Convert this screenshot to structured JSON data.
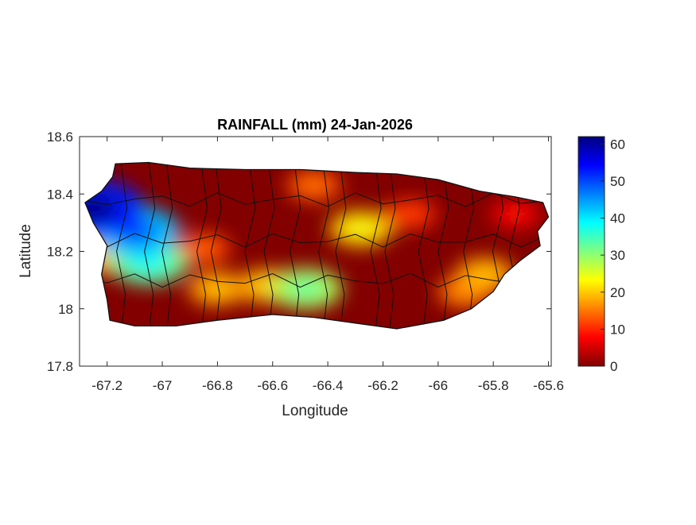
{
  "chart_data": {
    "type": "heatmap",
    "title": "RAINFALL (mm) 24-Jan-2026",
    "xlabel": "Longitude",
    "ylabel": "Latitude",
    "xlim": [
      -67.3,
      -65.59
    ],
    "ylim": [
      17.8,
      18.6
    ],
    "xticks": [
      -67.2,
      -67,
      -66.8,
      -66.6,
      -66.4,
      -66.2,
      -66,
      -65.8,
      -65.6
    ],
    "yticks": [
      17.8,
      18,
      18.2,
      18.4,
      18.6
    ],
    "colorbar": {
      "limits": [
        0,
        62
      ],
      "ticks": [
        0,
        10,
        20,
        30,
        40,
        50,
        60
      ],
      "colormap": "reversed jet"
    },
    "grid": false,
    "hotspots": [
      {
        "lon": -66.85,
        "lat": 18.21,
        "value": 14
      },
      {
        "lon": -66.45,
        "lat": 18.43,
        "value": 15
      },
      {
        "lon": -66.1,
        "lat": 18.33,
        "value": 12
      },
      {
        "lon": -65.72,
        "lat": 18.33,
        "value": 9
      },
      {
        "lon": -65.9,
        "lat": 18.06,
        "value": 17
      },
      {
        "lon": -65.83,
        "lat": 18.12,
        "value": 20
      },
      {
        "lon": -67.2,
        "lat": 18.18,
        "value": 20
      },
      {
        "lon": -66.8,
        "lat": 18.07,
        "value": 20
      },
      {
        "lon": -66.62,
        "lat": 18.08,
        "value": 21
      },
      {
        "lon": -66.28,
        "lat": 18.28,
        "value": 24
      },
      {
        "lon": -66.48,
        "lat": 18.07,
        "value": 33
      },
      {
        "lon": -67.05,
        "lat": 18.16,
        "value": 38
      },
      {
        "lon": -67.1,
        "lat": 18.27,
        "value": 50
      },
      {
        "lon": -67.25,
        "lat": 18.35,
        "value": 62
      }
    ]
  }
}
